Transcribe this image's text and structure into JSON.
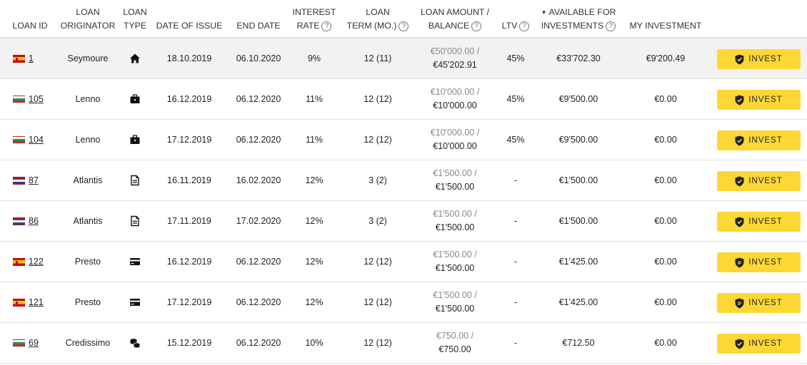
{
  "table": {
    "headers": {
      "loan_id": [
        "LOAN ID"
      ],
      "originator": [
        "LOAN",
        "ORIGINATOR"
      ],
      "loan_type": [
        "LOAN",
        "TYPE"
      ],
      "date_of_issue": [
        "DATE OF ISSUE"
      ],
      "end_date": [
        "END DATE"
      ],
      "interest_rate": [
        "INTEREST",
        "RATE"
      ],
      "loan_term": [
        "LOAN",
        "TERM (MO.)"
      ],
      "loan_amount": [
        "LOAN AMOUNT /",
        "BALANCE"
      ],
      "ltv": [
        "LTV"
      ],
      "available": [
        "AVAILABLE FOR",
        "INVESTMENTS"
      ],
      "my_investment": [
        "MY INVESTMENT"
      ]
    },
    "rows": [
      {
        "flag": "ES",
        "id": "1",
        "originator": "Seymoure",
        "type_icon": "house-icon",
        "issue": "18.10.2019",
        "end": "06.10.2020",
        "rate": "9%",
        "term": "12 (11)",
        "amount": "€50'000.00 /",
        "balance": "€45'202.91",
        "ltv": "45%",
        "available": "€33'702.30",
        "my": "€9'200.49",
        "button": "INVEST",
        "button_icon": "shield-check-icon"
      },
      {
        "flag": "BG",
        "id": "105",
        "originator": "Lenno",
        "type_icon": "briefcase-icon",
        "issue": "16.12.2019",
        "end": "06.12.2020",
        "rate": "11%",
        "term": "12 (12)",
        "amount": "€10'000.00 /",
        "balance": "€10'000.00",
        "ltv": "45%",
        "available": "€9'500.00",
        "my": "€0.00",
        "button": "INVEST",
        "button_icon": "shield-check-icon"
      },
      {
        "flag": "BG",
        "id": "104",
        "originator": "Lenno",
        "type_icon": "briefcase-icon",
        "issue": "17.12.2019",
        "end": "06.12.2020",
        "rate": "11%",
        "term": "12 (12)",
        "amount": "€10'000.00 /",
        "balance": "€10'000.00",
        "ltv": "45%",
        "available": "€9'500.00",
        "my": "€0.00",
        "button": "INVEST",
        "button_icon": "shield-check-icon"
      },
      {
        "flag": "NL",
        "id": "87",
        "originator": "Atlantis",
        "type_icon": "document-icon",
        "issue": "16.11.2019",
        "end": "16.02.2020",
        "rate": "12%",
        "term": "3 (2)",
        "amount": "€1'500.00 /",
        "balance": "€1'500.00",
        "ltv": "-",
        "available": "€1'500.00",
        "my": "€0.00",
        "button": "INVEST",
        "button_icon": "shield-check-icon"
      },
      {
        "flag": "NL",
        "id": "86",
        "originator": "Atlantis",
        "type_icon": "document-icon",
        "issue": "17.11.2019",
        "end": "17.02.2020",
        "rate": "12%",
        "term": "3 (2)",
        "amount": "€1'500.00 /",
        "balance": "€1'500.00",
        "ltv": "-",
        "available": "€1'500.00",
        "my": "€0.00",
        "button": "INVEST",
        "button_icon": "shield-check-icon"
      },
      {
        "flag": "ES",
        "id": "122",
        "originator": "Presto",
        "type_icon": "credit-card-icon",
        "issue": "16.12.2019",
        "end": "06.12.2020",
        "rate": "12%",
        "term": "12 (12)",
        "amount": "€1'500.00 /",
        "balance": "€1'500.00",
        "ltv": "-",
        "available": "€1'425.00",
        "my": "€0.00",
        "button": "INVEST",
        "button_icon": "shield-p-icon"
      },
      {
        "flag": "ES",
        "id": "121",
        "originator": "Presto",
        "type_icon": "credit-card-icon",
        "issue": "17.12.2019",
        "end": "06.12.2020",
        "rate": "12%",
        "term": "12 (12)",
        "amount": "€1'500.00 /",
        "balance": "€1'500.00",
        "ltv": "-",
        "available": "€1'425.00",
        "my": "€0.00",
        "button": "INVEST",
        "button_icon": "shield-p-icon"
      },
      {
        "flag": "BG",
        "id": "69",
        "originator": "Credissimo",
        "type_icon": "coins-icon",
        "issue": "15.12.2019",
        "end": "06.12.2020",
        "rate": "10%",
        "term": "12 (12)",
        "amount": "€750.00 /",
        "balance": "€750.00",
        "ltv": "-",
        "available": "€712.50",
        "my": "€0.00",
        "button": "INVEST",
        "button_icon": "shield-check-icon"
      }
    ]
  },
  "colors": {
    "accent": "#fdd835",
    "row_highlight": "#f2f2f2",
    "muted_text": "#8a8a8a"
  }
}
